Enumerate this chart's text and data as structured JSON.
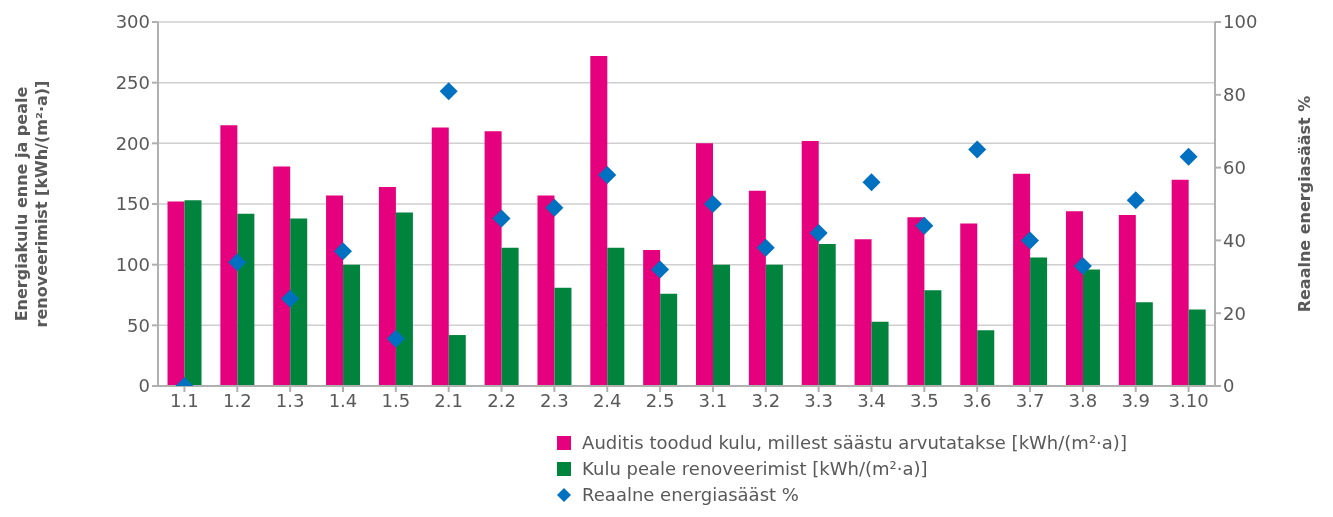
{
  "chart_data": {
    "type": "bar",
    "categories": [
      "1.1",
      "1.2",
      "1.3",
      "1.4",
      "1.5",
      "2.1",
      "2.2",
      "2.3",
      "2.4",
      "2.5",
      "3.1",
      "3.2",
      "3.3",
      "3.4",
      "3.5",
      "3.6",
      "3.7",
      "3.8",
      "3.9",
      "3.10"
    ],
    "ylabel": "Energiakulu enne ja peale renoveerimist [kWh/(m²·a)]",
    "y2label": "Reaalne energiasääst %",
    "series": [
      {
        "name": "Auditis toodud kulu, millest säästu arvutatakse [kWh/(m²·a)]",
        "color": "#e5007d",
        "values": [
          152,
          215,
          181,
          157,
          164,
          213,
          210,
          157,
          272,
          112,
          200,
          161,
          202,
          121,
          139,
          134,
          175,
          144,
          141,
          170
        ]
      },
      {
        "name": "Kulu peale renoveerimist [kWh/(m²·a)]",
        "color": "#00843d",
        "values": [
          153,
          142,
          138,
          100,
          143,
          42,
          114,
          81,
          114,
          76,
          100,
          100,
          117,
          53,
          79,
          46,
          106,
          96,
          69,
          63
        ]
      },
      {
        "name": "Reaalne energiasääst %",
        "type": "scatter",
        "axis": "y2",
        "marker": "diamond",
        "color": "#0070c0",
        "values": [
          0,
          34,
          24,
          37,
          13,
          81,
          46,
          49,
          58,
          32,
          50,
          38,
          42,
          56,
          44,
          65,
          40,
          33,
          51,
          63
        ]
      }
    ],
    "ylim": [
      0,
      300
    ],
    "yticks": [
      0,
      50,
      100,
      150,
      200,
      250,
      300
    ],
    "y2lim": [
      0,
      100
    ],
    "y2ticks": [
      0,
      20,
      40,
      60,
      80,
      100
    ],
    "grid": "y",
    "legend": "bottom"
  }
}
